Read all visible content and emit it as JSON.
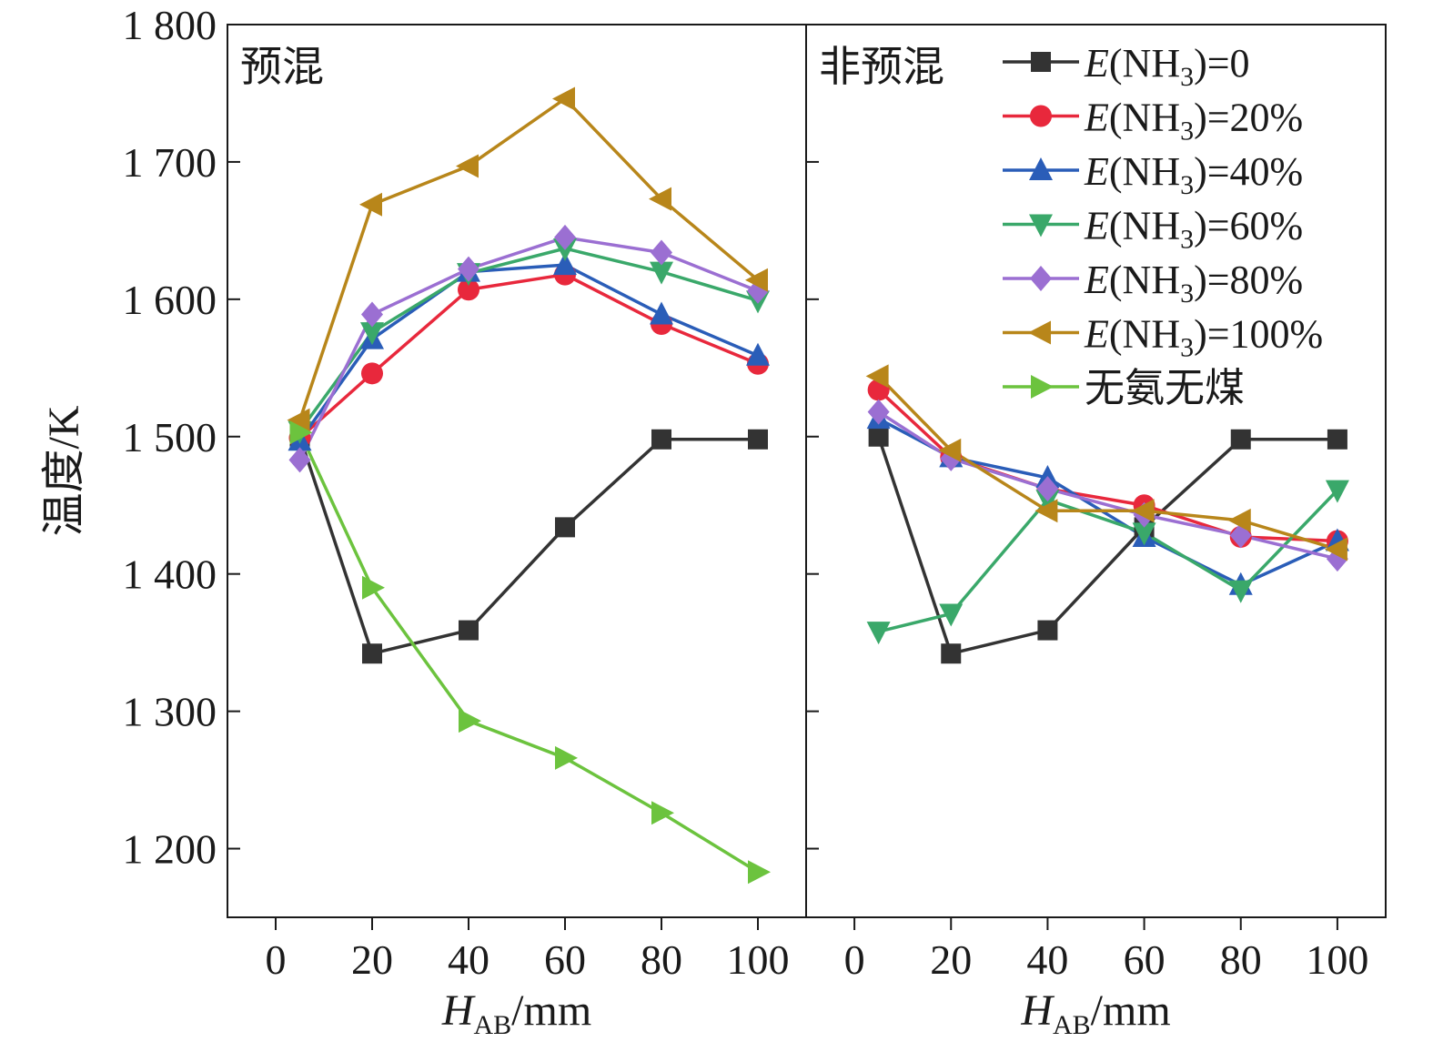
{
  "chart_data": {
    "type": "line",
    "ylabel": "温度/K",
    "ylim": [
      1150,
      1800
    ],
    "yticks": [
      1200,
      1300,
      1400,
      1500,
      1600,
      1700,
      1800
    ],
    "ytick_labels": [
      "1 200",
      "1 300",
      "1 400",
      "1 500",
      "1 600",
      "1 700",
      "1 800"
    ],
    "xlabel": {
      "main": "H",
      "sub": "AB",
      "unit": "/mm"
    },
    "xlim": [
      -10,
      110
    ],
    "xticks": [
      0,
      20,
      40,
      60,
      80,
      100
    ],
    "xtick_labels": [
      "0",
      "20",
      "40",
      "60",
      "80",
      "100"
    ],
    "legend_position": "top-right",
    "panels": [
      {
        "title": "预混",
        "series": [
          {
            "key": "e0",
            "x": [
              5,
              20,
              40,
              60,
              80,
              100
            ],
            "y": [
              1500,
              1342,
              1359,
              1434,
              1498,
              1498
            ]
          },
          {
            "key": "e20",
            "x": [
              5,
              20,
              40,
              60,
              80,
              100
            ],
            "y": [
              1499,
              1546,
              1607,
              1618,
              1582,
              1553
            ]
          },
          {
            "key": "e40",
            "x": [
              5,
              20,
              40,
              60,
              80,
              100
            ],
            "y": [
              1497,
              1571,
              1620,
              1625,
              1589,
              1559
            ]
          },
          {
            "key": "e60",
            "x": [
              5,
              20,
              40,
              60,
              80,
              100
            ],
            "y": [
              1504,
              1576,
              1619,
              1637,
              1620,
              1599
            ]
          },
          {
            "key": "e80",
            "x": [
              5,
              20,
              40,
              60,
              80,
              100
            ],
            "y": [
              1483,
              1589,
              1622,
              1645,
              1634,
              1606
            ]
          },
          {
            "key": "e100",
            "x": [
              5,
              20,
              40,
              60,
              80,
              100
            ],
            "y": [
              1512,
              1669,
              1697,
              1746,
              1673,
              1614
            ]
          },
          {
            "key": "none",
            "x": [
              5,
              20,
              40,
              60,
              80,
              100
            ],
            "y": [
              1503,
              1390,
              1293,
              1266,
              1226,
              1183
            ]
          }
        ]
      },
      {
        "title": "非预混",
        "series": [
          {
            "key": "e0",
            "x": [
              5,
              20,
              40,
              60,
              80,
              100
            ],
            "y": [
              1500,
              1342,
              1359,
              1434,
              1498,
              1498
            ]
          },
          {
            "key": "e20",
            "x": [
              5,
              20,
              40,
              60,
              80,
              100
            ],
            "y": [
              1534,
              1485,
              1462,
              1450,
              1427,
              1424
            ]
          },
          {
            "key": "e40",
            "x": [
              5,
              20,
              40,
              60,
              80,
              100
            ],
            "y": [
              1513,
              1485,
              1470,
              1427,
              1392,
              1424
            ]
          },
          {
            "key": "e60",
            "x": [
              5,
              20,
              40,
              60,
              80,
              100
            ],
            "y": [
              1358,
              1371,
              1454,
              1430,
              1388,
              1461
            ]
          },
          {
            "key": "e80",
            "x": [
              5,
              20,
              40,
              60,
              80,
              100
            ],
            "y": [
              1518,
              1484,
              1462,
              1443,
              1428,
              1411
            ]
          },
          {
            "key": "e100",
            "x": [
              5,
              20,
              40,
              60,
              80,
              100
            ],
            "y": [
              1544,
              1490,
              1446,
              1446,
              1439,
              1418
            ]
          }
        ]
      }
    ],
    "legend": [
      {
        "key": "e0",
        "prefix": "E",
        "open": "(NH",
        "sub": "3",
        "rest": ")=0",
        "color": "#333333",
        "marker": "square"
      },
      {
        "key": "e20",
        "prefix": "E",
        "open": "(NH",
        "sub": "3",
        "rest": ")=20%",
        "color": "#e8283c",
        "marker": "circle"
      },
      {
        "key": "e40",
        "prefix": "E",
        "open": "(NH",
        "sub": "3",
        "rest": ")=40%",
        "color": "#2a5db8",
        "marker": "triangle-up"
      },
      {
        "key": "e60",
        "prefix": "E",
        "open": "(NH",
        "sub": "3",
        "rest": ")=60%",
        "color": "#3aa86a",
        "marker": "triangle-down"
      },
      {
        "key": "e80",
        "prefix": "E",
        "open": "(NH",
        "sub": "3",
        "rest": ")=80%",
        "color": "#9b6fd2",
        "marker": "diamond"
      },
      {
        "key": "e100",
        "prefix": "E",
        "open": "(NH",
        "sub": "3",
        "rest": ")=100%",
        "color": "#b8861a",
        "marker": "triangle-left"
      },
      {
        "key": "none",
        "prefix": "",
        "open": "",
        "sub": "",
        "rest": "无氨无煤",
        "color": "#6cc33e",
        "marker": "triangle-right"
      }
    ]
  }
}
